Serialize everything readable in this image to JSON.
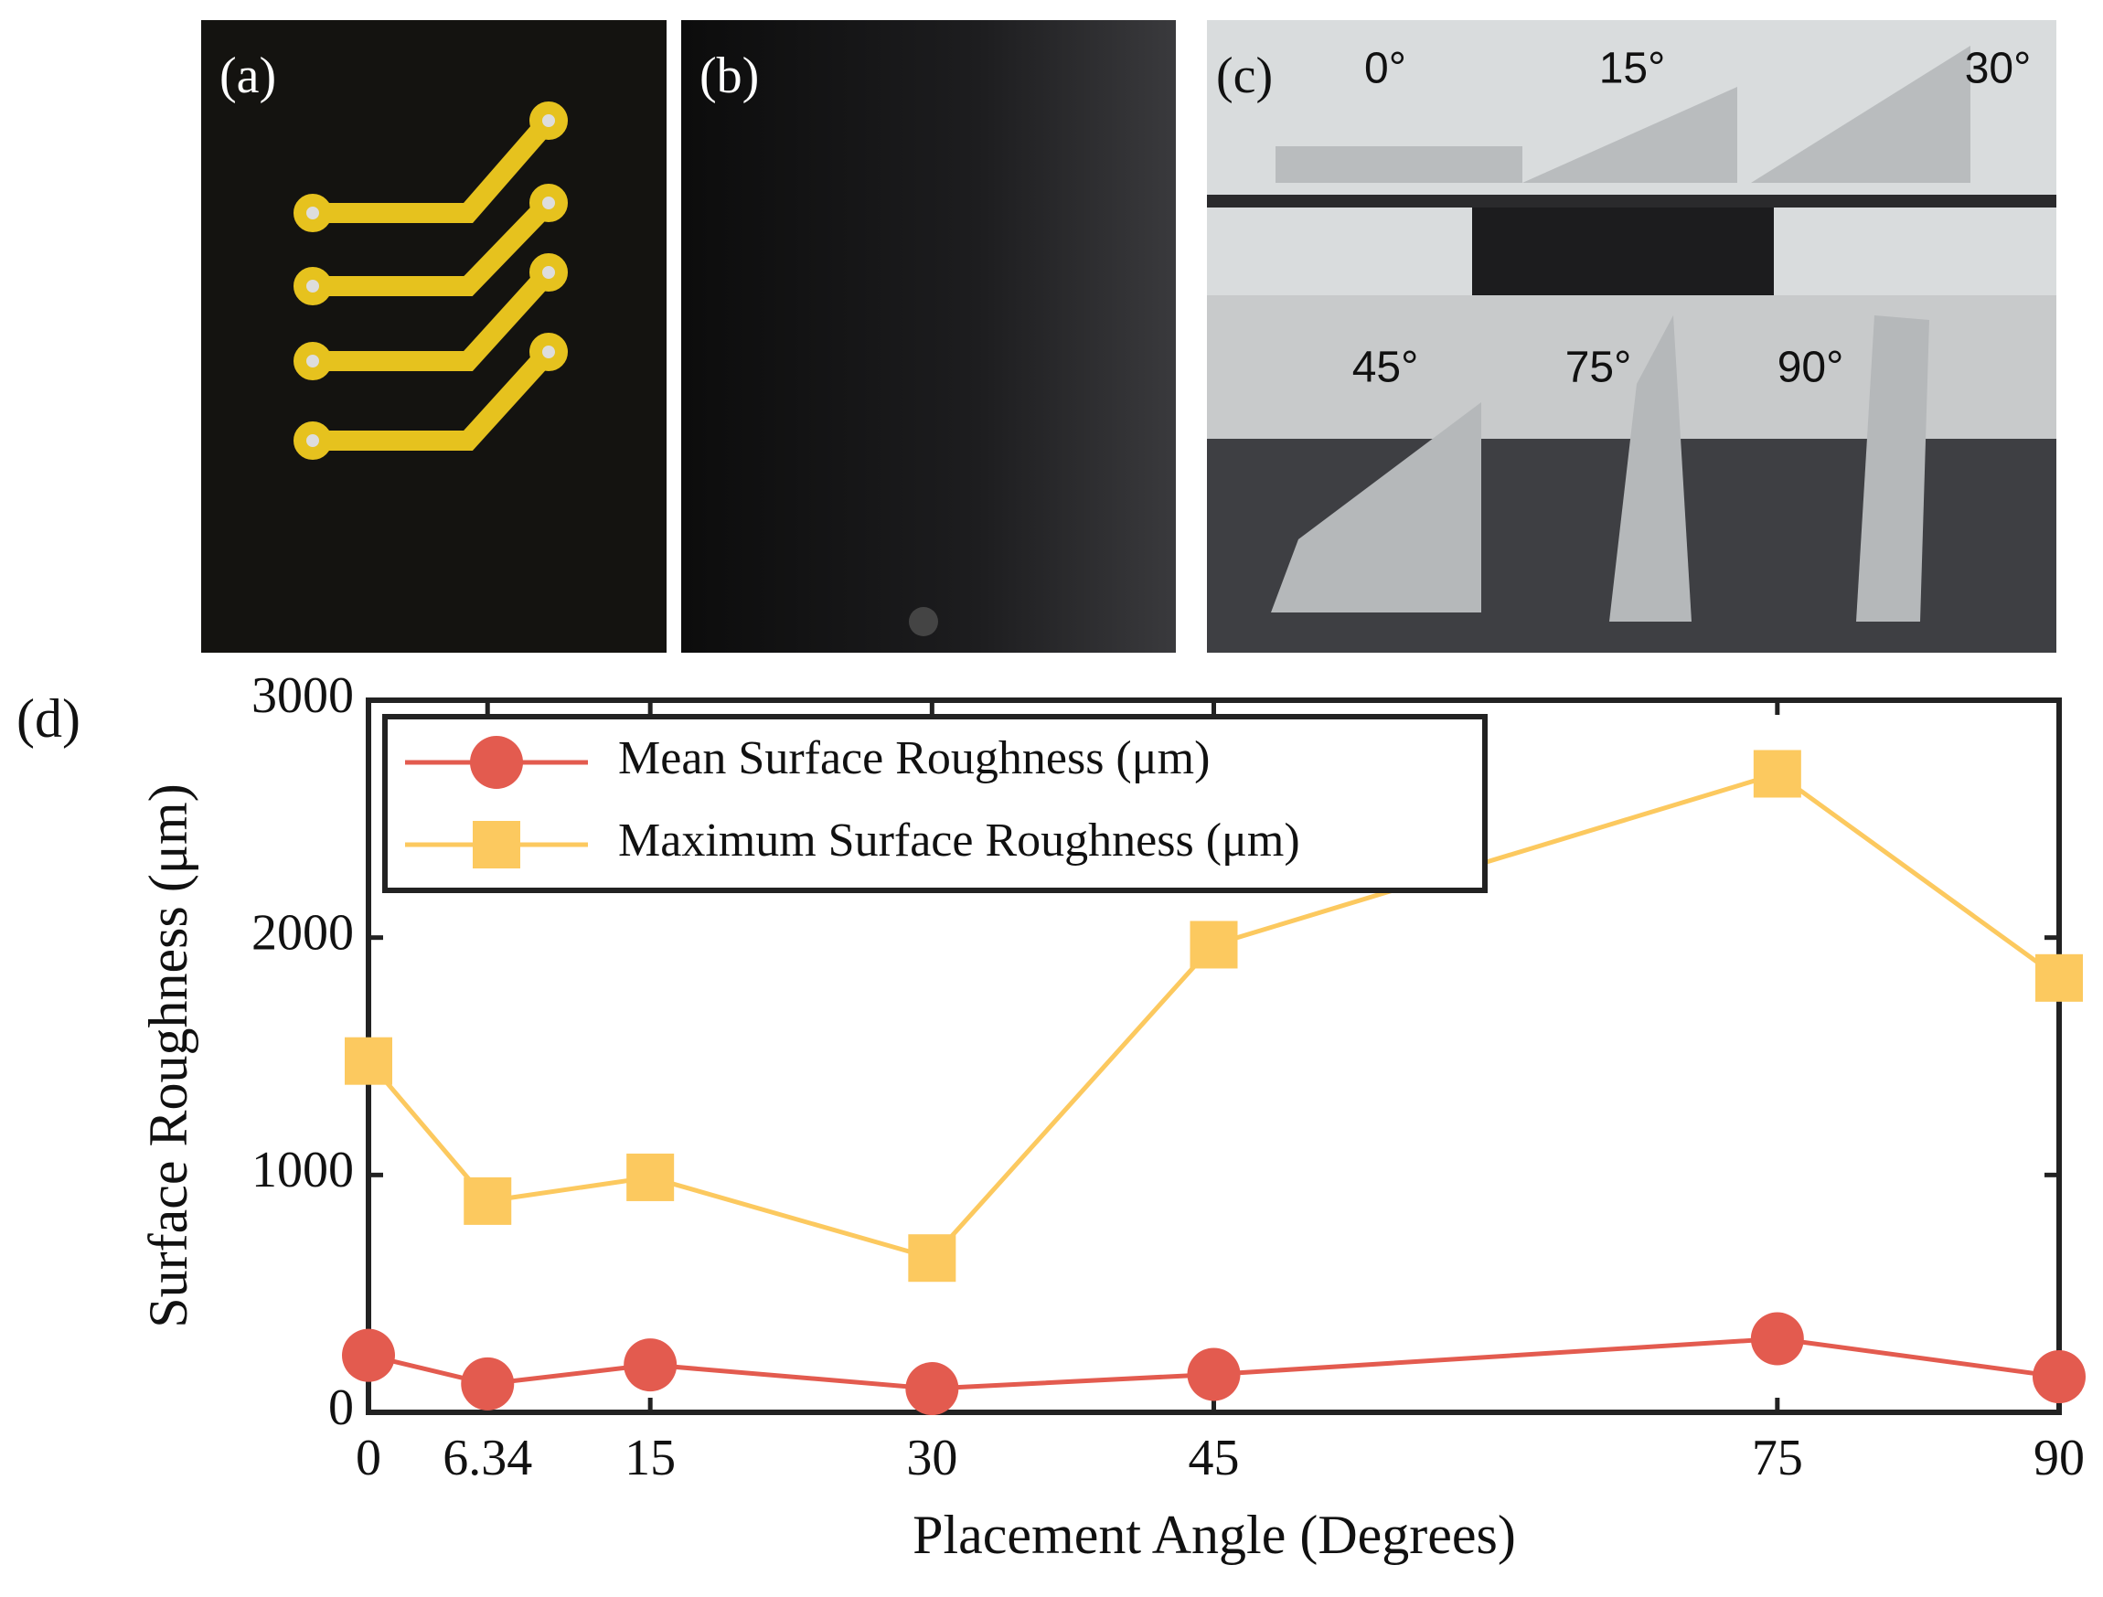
{
  "panels": [
    {
      "label": "(a)"
    },
    {
      "label": "(b)"
    },
    {
      "label": "(c)",
      "annotations": [
        "0°",
        "15°",
        "30°",
        "45°",
        "75°",
        "90°"
      ]
    }
  ],
  "chart_data": {
    "type": "line",
    "panel_label": "(d)",
    "x_label": "Placement Angle (Degrees)",
    "y_label": "Surface Roughness (μm)",
    "x": [
      0,
      6.34,
      15,
      30,
      45,
      75,
      90
    ],
    "series": [
      {
        "name": "Mean Surface Roughness (μm)",
        "color": "#e35b4f",
        "marker": "circle",
        "values": [
          240,
          120,
          200,
          100,
          160,
          310,
          150
        ]
      },
      {
        "name": "Maximum Surface Roughness (μm)",
        "color": "#fcc95f",
        "marker": "square",
        "values": [
          1480,
          890,
          990,
          650,
          1970,
          2690,
          1830
        ]
      }
    ],
    "xlim": [
      0,
      90
    ],
    "xticks": [
      0,
      6.34,
      15,
      30,
      45,
      75,
      90
    ],
    "ylim": [
      0,
      3000
    ],
    "yticks": [
      0,
      1000,
      2000,
      3000
    ],
    "grid": false,
    "legend": "upper left"
  }
}
